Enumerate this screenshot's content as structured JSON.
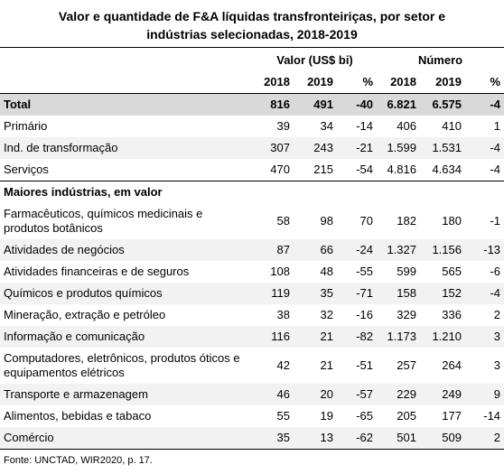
{
  "title": "Valor e quantidade de F&A líquidas transfronteiriças, por setor e indústrias selecionadas, 2018-2019",
  "table": {
    "group_headers": [
      "Valor (US$ bi)",
      "Número"
    ],
    "columns": [
      "2018",
      "2019",
      "%",
      "2018",
      "2019",
      "%"
    ],
    "rows": [
      [
        "Total",
        "816",
        "491",
        "-40",
        "6.821",
        "6.575",
        "-4"
      ],
      [
        "Primário",
        "39",
        "34",
        "-14",
        "406",
        "410",
        "1"
      ],
      [
        "Ind. de transformação",
        "307",
        "243",
        "-21",
        "1.599",
        "1.531",
        "-4"
      ],
      [
        "Serviços",
        "470",
        "215",
        "-54",
        "4.816",
        "4.634",
        "-4"
      ]
    ],
    "section": "Maiores indústrias, em valor",
    "industry_rows": [
      [
        "Farmacêuticos, químicos medicinais e produtos botânicos",
        "58",
        "98",
        "70",
        "182",
        "180",
        "-1"
      ],
      [
        "Atividades de negócios",
        "87",
        "66",
        "-24",
        "1.327",
        "1.156",
        "-13"
      ],
      [
        "Atividades financeiras e de seguros",
        "108",
        "48",
        "-55",
        "599",
        "565",
        "-6"
      ],
      [
        "Químicos e produtos químicos",
        "119",
        "35",
        "-71",
        "158",
        "152",
        "-4"
      ],
      [
        "Mineração, extração e petróleo",
        "38",
        "32",
        "-16",
        "329",
        "336",
        "2"
      ],
      [
        "Informação e comunicação",
        "116",
        "21",
        "-82",
        "1.173",
        "1.210",
        "3"
      ],
      [
        "Computadores, eletrônicos, produtos óticos e equipamentos elétricos",
        "42",
        "21",
        "-51",
        "257",
        "264",
        "3"
      ],
      [
        "Transporte e armazenagem",
        "46",
        "20",
        "-57",
        "229",
        "249",
        "9"
      ],
      [
        "Alimentos, bebidas e tabaco",
        "55",
        "19",
        "-65",
        "205",
        "177",
        "-14"
      ],
      [
        "Comércio",
        "35",
        "13",
        "-62",
        "501",
        "509",
        "2"
      ]
    ]
  },
  "footer": "Fonte: UNCTAD, WIR2020, p. 17."
}
